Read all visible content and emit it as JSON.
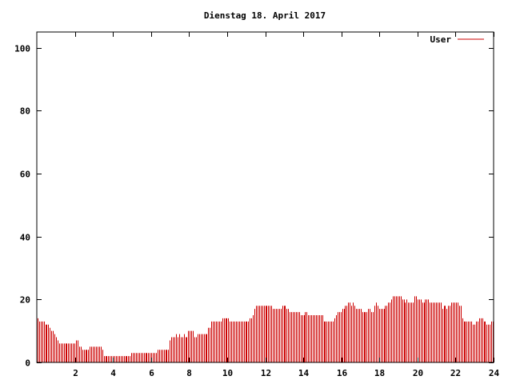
{
  "chart_data": {
    "type": "bar",
    "title": "Dienstag 18. April 2017",
    "xlabel": "",
    "ylabel": "",
    "xlim": [
      0,
      24
    ],
    "ylim": [
      0,
      105
    ],
    "x_ticks": [
      2,
      4,
      6,
      8,
      10,
      12,
      14,
      16,
      18,
      20,
      22,
      24
    ],
    "y_ticks": [
      0,
      20,
      40,
      60,
      80,
      100
    ],
    "grid": false,
    "legend_position": "top-right",
    "color": "#cc0000",
    "series": [
      {
        "name": "User",
        "values": [
          14,
          13,
          13,
          13,
          13,
          12,
          12,
          12,
          11,
          10,
          10,
          9,
          8,
          7,
          6,
          6,
          6,
          6,
          6,
          6,
          6,
          6,
          6,
          6,
          6,
          7,
          7,
          5,
          5,
          4,
          4,
          4,
          4,
          4,
          5,
          5,
          5,
          5,
          5,
          5,
          5,
          5,
          4,
          2,
          2,
          2,
          2,
          2,
          2,
          2,
          2,
          2,
          2,
          2,
          2,
          2,
          2,
          2,
          2,
          2,
          2,
          3,
          3,
          3,
          3,
          3,
          3,
          3,
          3,
          3,
          3,
          3,
          3,
          3,
          3,
          3,
          3,
          3,
          4,
          4,
          4,
          4,
          4,
          4,
          4,
          4,
          7,
          8,
          8,
          8,
          9,
          8,
          9,
          8,
          8,
          9,
          8,
          8,
          10,
          10,
          10,
          10,
          8,
          8,
          9,
          9,
          9,
          9,
          9,
          9,
          9,
          11,
          11,
          13,
          13,
          13,
          13,
          13,
          13,
          13,
          14,
          14,
          14,
          14,
          14,
          13,
          13,
          13,
          13,
          13,
          13,
          13,
          13,
          13,
          13,
          13,
          13,
          13,
          14,
          14,
          15,
          17,
          18,
          18,
          18,
          18,
          18,
          18,
          18,
          18,
          18,
          18,
          18,
          17,
          17,
          17,
          17,
          17,
          17,
          18,
          18,
          18,
          17,
          17,
          16,
          16,
          16,
          16,
          16,
          16,
          16,
          15,
          15,
          15,
          16,
          16,
          15,
          15,
          15,
          15,
          15,
          15,
          15,
          15,
          15,
          15,
          13,
          13,
          13,
          13,
          13,
          13,
          13,
          14,
          15,
          16,
          16,
          16,
          17,
          17,
          18,
          18,
          19,
          19,
          18,
          19,
          18,
          17,
          17,
          17,
          17,
          16,
          16,
          16,
          16,
          17,
          17,
          16,
          16,
          18,
          19,
          18,
          17,
          17,
          17,
          17,
          18,
          18,
          19,
          19,
          20,
          21,
          21,
          21,
          21,
          21,
          21,
          20,
          20,
          19,
          20,
          19,
          19,
          19,
          19,
          21,
          21,
          20,
          20,
          20,
          19,
          19,
          20,
          20,
          20,
          19,
          19,
          19,
          19,
          19,
          19,
          19,
          19,
          17,
          18,
          18,
          17,
          18,
          18,
          19,
          19,
          19,
          19,
          19,
          18,
          18,
          14,
          13,
          13,
          13,
          13,
          13,
          13,
          12,
          12,
          13,
          13,
          14,
          14,
          14,
          13,
          13,
          12,
          12,
          12,
          13,
          13
        ]
      }
    ]
  }
}
